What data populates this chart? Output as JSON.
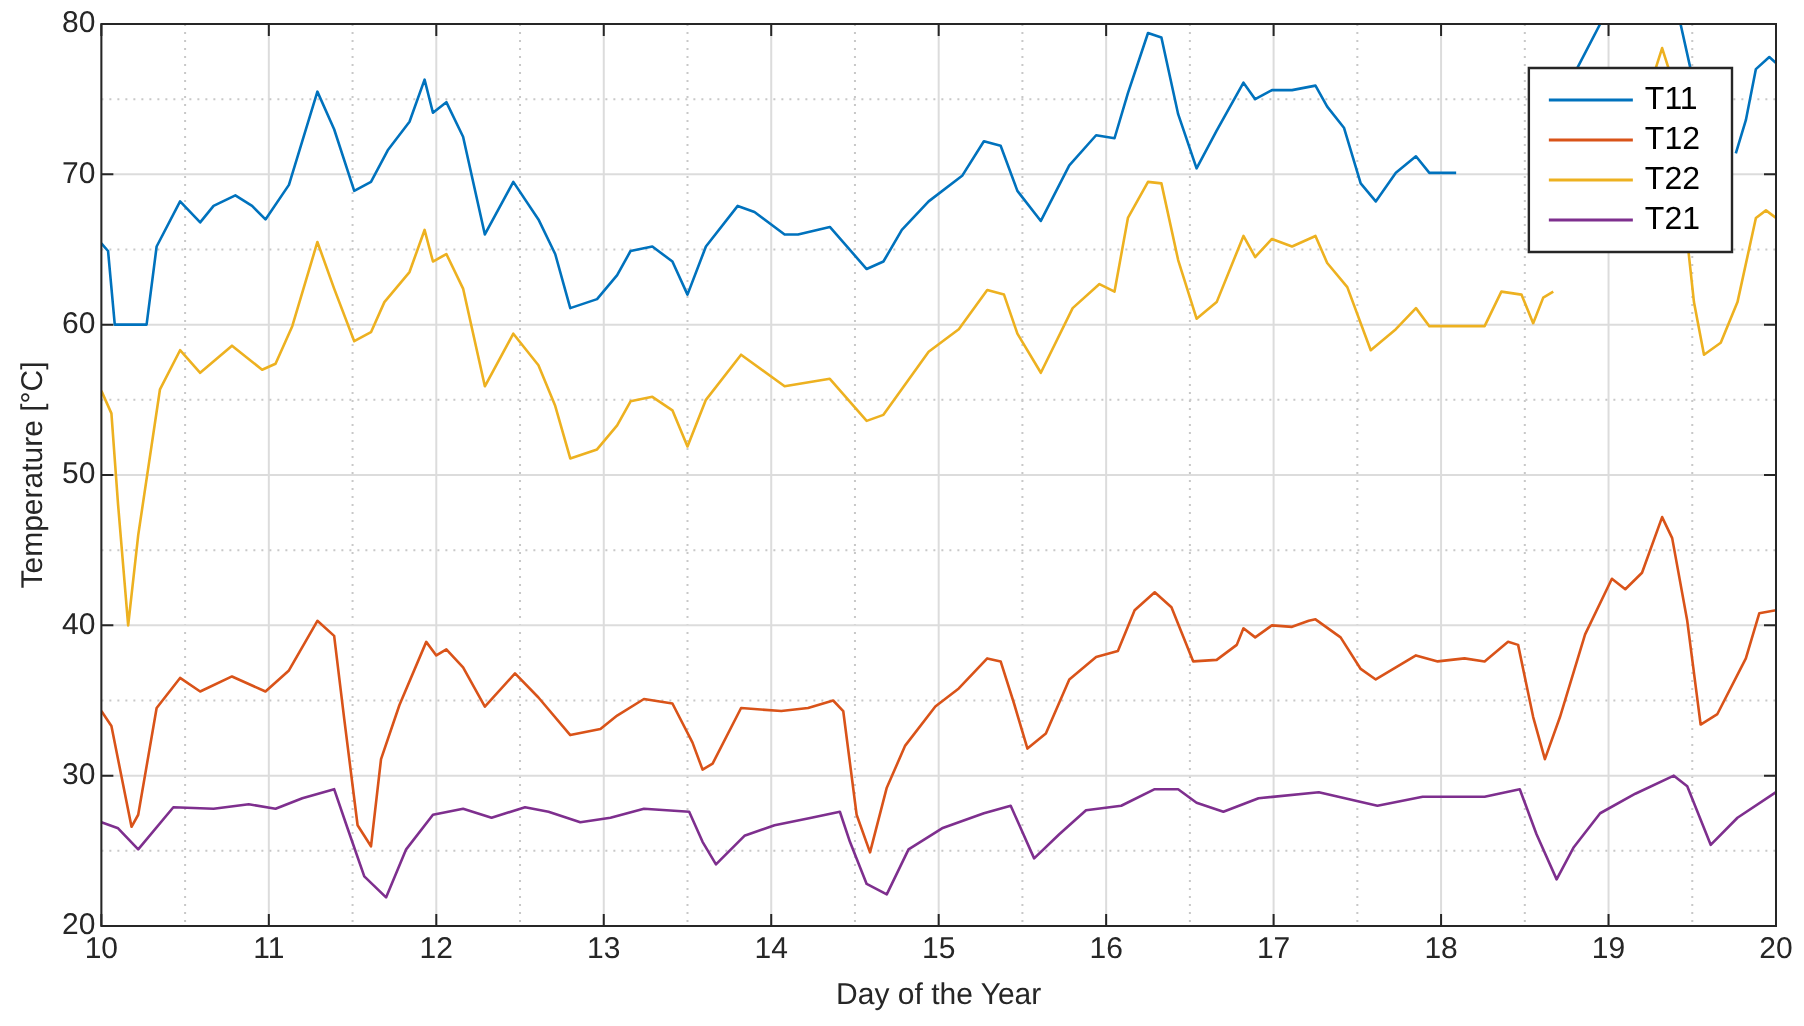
{
  "chart_data": {
    "type": "line",
    "xlabel": "Day of the Year",
    "ylabel": "Temperature [°C]",
    "xlim": [
      10,
      20
    ],
    "ylim": [
      20,
      80
    ],
    "xticks": [
      10,
      {
        "value": 10.5,
        "label": null
      },
      11,
      {
        "value": 11.5,
        "label": null
      },
      12,
      {
        "value": 12.5,
        "label": null
      },
      13,
      {
        "value": 13.5,
        "label": null
      },
      14,
      {
        "value": 14.5,
        "label": null
      },
      15,
      {
        "value": 15.5,
        "label": null
      },
      16,
      {
        "value": 16.5,
        "label": null
      },
      17,
      {
        "value": 17.5,
        "label": null
      },
      18,
      {
        "value": 18.5,
        "label": null
      },
      19,
      {
        "value": 19.5,
        "label": null
      },
      20
    ],
    "yticks": [
      20,
      {
        "value": 25,
        "label": null
      },
      30,
      {
        "value": 35,
        "label": null
      },
      40,
      {
        "value": 45,
        "label": null
      },
      50,
      {
        "value": 55,
        "label": null
      },
      60,
      {
        "value": 65,
        "label": null
      },
      70,
      {
        "value": 75,
        "label": null
      },
      80
    ],
    "grid": true,
    "legend": "top right",
    "line_style": "solid",
    "marker": "none",
    "series": [
      {
        "name": "T11",
        "color": "#0072bd",
        "x": [
          10,
          10.04,
          10.08,
          10.27,
          10.33,
          10.47,
          10.59,
          10.67,
          10.8,
          10.9,
          10.98,
          11.12,
          11.29,
          11.39,
          11.51,
          11.61,
          11.71,
          11.84,
          11.93,
          11.98,
          12.06,
          12.16,
          12.29,
          12.46,
          12.61,
          12.71,
          12.8,
          12.96,
          13.08,
          13.16,
          13.29,
          13.41,
          13.5,
          13.61,
          13.8,
          13.9,
          14.08,
          14.16,
          14.35,
          14.57,
          14.67,
          14.78,
          14.94,
          15.14,
          15.27,
          15.37,
          15.47,
          15.61,
          15.78,
          15.94,
          16.05,
          16.13,
          16.25,
          16.33,
          16.43,
          16.54,
          16.66,
          16.82,
          16.89,
          16.99,
          17.11,
          17.25,
          17.32,
          17.42,
          17.52,
          17.61,
          17.73,
          17.85,
          17.93,
          18.09,
          18.45,
          18.81,
          18.95,
          19.2,
          19.43,
          19.49,
          19.6,
          19.76,
          19.82,
          19.88,
          19.96,
          20
        ],
        "values": [
          65.4,
          64.9,
          60,
          60,
          65.2,
          68.2,
          66.8,
          67.9,
          68.6,
          67.9,
          67,
          69.3,
          75.5,
          73,
          68.9,
          69.5,
          71.6,
          73.5,
          76.3,
          74.1,
          74.8,
          72.5,
          66,
          69.5,
          67,
          64.7,
          61.1,
          61.7,
          63.3,
          64.9,
          65.2,
          64.2,
          62,
          65.2,
          67.9,
          67.5,
          66,
          66,
          66.5,
          63.7,
          64.2,
          66.3,
          68.2,
          69.9,
          72.2,
          71.9,
          68.9,
          66.9,
          70.6,
          72.6,
          72.4,
          75.4,
          79.4,
          79.1,
          74,
          70.4,
          72.9,
          76.1,
          75,
          75.6,
          75.6,
          75.9,
          74.5,
          73.1,
          69.4,
          68.2,
          70.1,
          71.2,
          70.1,
          70.1,
          null,
          77,
          80,
          null,
          80,
          77,
          null,
          71.4,
          73.6,
          77,
          77.8,
          77.4
        ]
      },
      {
        "name": "T12",
        "color": "#d95319",
        "x": [
          10,
          10.06,
          10.18,
          10.22,
          10.33,
          10.47,
          10.59,
          10.78,
          10.98,
          11.12,
          11.29,
          11.39,
          11.45,
          11.53,
          11.61,
          11.67,
          11.78,
          11.94,
          12,
          12.06,
          12.16,
          12.29,
          12.47,
          12.61,
          12.8,
          12.98,
          13.08,
          13.24,
          13.41,
          13.53,
          13.59,
          13.65,
          13.82,
          14.06,
          14.22,
          14.37,
          14.43,
          14.51,
          14.59,
          14.69,
          14.8,
          14.98,
          15.12,
          15.29,
          15.37,
          15.45,
          15.53,
          15.64,
          15.78,
          15.94,
          16.07,
          16.17,
          16.29,
          16.39,
          16.52,
          16.66,
          16.78,
          16.82,
          16.89,
          16.99,
          17.11,
          17.21,
          17.25,
          17.4,
          17.52,
          17.61,
          17.85,
          17.98,
          18.14,
          18.26,
          18.4,
          18.46,
          18.55,
          18.62,
          18.71,
          18.86,
          19.02,
          19.1,
          19.2,
          19.32,
          19.38,
          19.47,
          19.55,
          19.65,
          19.82,
          19.9,
          20
        ],
        "values": [
          34.3,
          33.3,
          26.6,
          27.4,
          34.5,
          36.5,
          35.6,
          36.6,
          35.6,
          37,
          40.3,
          39.3,
          33.8,
          26.7,
          25.3,
          31.1,
          34.7,
          38.9,
          38,
          38.4,
          37.2,
          34.6,
          36.8,
          35.2,
          32.7,
          33.1,
          34,
          35.1,
          34.8,
          32.2,
          30.4,
          30.8,
          34.5,
          34.3,
          34.5,
          35,
          34.3,
          27.4,
          24.9,
          29.2,
          32,
          34.6,
          35.8,
          37.8,
          37.6,
          34.8,
          31.8,
          32.8,
          36.4,
          37.9,
          38.3,
          41,
          42.2,
          41.2,
          37.6,
          37.7,
          38.7,
          39.8,
          39.2,
          40,
          39.9,
          40.3,
          40.4,
          39.2,
          37.1,
          36.4,
          38,
          37.6,
          37.8,
          37.6,
          38.9,
          38.7,
          33.9,
          31.1,
          33.9,
          39.4,
          43.1,
          42.4,
          43.5,
          47.2,
          45.8,
          40.3,
          33.4,
          34.1,
          37.8,
          40.8,
          41
        ]
      },
      {
        "name": "T22",
        "color": "#edb120",
        "x": [
          10,
          10.06,
          10.1,
          10.16,
          10.22,
          10.35,
          10.47,
          10.59,
          10.78,
          10.96,
          11.04,
          11.14,
          11.29,
          11.39,
          11.51,
          11.61,
          11.69,
          11.84,
          11.93,
          11.98,
          12.06,
          12.16,
          12.29,
          12.46,
          12.61,
          12.71,
          12.8,
          12.96,
          13.08,
          13.16,
          13.29,
          13.41,
          13.5,
          13.61,
          13.82,
          14.08,
          14.35,
          14.57,
          14.67,
          14.94,
          15.12,
          15.29,
          15.39,
          15.47,
          15.61,
          15.8,
          15.96,
          16.05,
          16.13,
          16.25,
          16.33,
          16.43,
          16.54,
          16.66,
          16.82,
          16.89,
          16.99,
          17.11,
          17.25,
          17.32,
          17.44,
          17.58,
          17.73,
          17.85,
          17.93,
          18.14,
          18.26,
          18.36,
          18.48,
          18.55,
          18.61,
          18.67,
          19,
          19.28,
          19.32,
          19.36,
          19.51,
          19.57,
          19.67,
          19.77,
          19.88,
          19.94,
          20
        ],
        "values": [
          55.6,
          54.1,
          48,
          40,
          46,
          55.7,
          58.3,
          56.8,
          58.6,
          57,
          57.4,
          59.9,
          65.5,
          62.4,
          58.9,
          59.5,
          61.5,
          63.5,
          66.3,
          64.2,
          64.7,
          62.4,
          55.9,
          59.4,
          57.3,
          54.6,
          51.1,
          51.7,
          53.3,
          54.9,
          55.2,
          54.3,
          51.9,
          55,
          58,
          55.9,
          56.4,
          53.6,
          54,
          58.2,
          59.7,
          62.3,
          62,
          59.4,
          56.8,
          61.1,
          62.7,
          62.2,
          67.1,
          69.5,
          69.4,
          64.3,
          60.4,
          61.5,
          65.9,
          64.5,
          65.7,
          65.2,
          65.9,
          64.1,
          62.5,
          58.3,
          59.7,
          61.1,
          59.9,
          59.9,
          59.9,
          62.2,
          62,
          60.1,
          61.8,
          62.2,
          null,
          77,
          78.4,
          77,
          61.5,
          58,
          58.8,
          61.5,
          67.1,
          67.6,
          67.1
        ]
      },
      {
        "name": "T21",
        "color": "#7e2f8e",
        "x": [
          10,
          10.1,
          10.22,
          10.43,
          10.67,
          10.88,
          11.04,
          11.2,
          11.39,
          11.47,
          11.57,
          11.7,
          11.82,
          11.98,
          12.16,
          12.33,
          12.53,
          12.67,
          12.86,
          13.04,
          13.24,
          13.51,
          13.59,
          13.67,
          13.84,
          14.02,
          14.24,
          14.41,
          14.47,
          14.57,
          14.69,
          14.82,
          15.02,
          15.27,
          15.43,
          15.57,
          15.72,
          15.88,
          16.09,
          16.29,
          16.43,
          16.54,
          16.7,
          16.91,
          17.27,
          17.62,
          17.89,
          18.26,
          18.47,
          18.57,
          18.69,
          18.79,
          18.95,
          19.16,
          19.39,
          19.47,
          19.61,
          19.77,
          20
        ],
        "values": [
          26.9,
          26.5,
          25.1,
          27.9,
          27.8,
          28.1,
          27.8,
          28.5,
          29.1,
          26.5,
          23.3,
          21.9,
          25.1,
          27.4,
          27.8,
          27.2,
          27.9,
          27.6,
          26.9,
          27.2,
          27.8,
          27.6,
          25.6,
          24.1,
          26,
          26.7,
          27.2,
          27.6,
          25.6,
          22.8,
          22.1,
          25.1,
          26.5,
          27.5,
          28,
          24.5,
          26.1,
          27.7,
          28,
          29.1,
          29.1,
          28.2,
          27.6,
          28.5,
          28.9,
          28,
          28.6,
          28.6,
          29.1,
          26.1,
          23.1,
          25.2,
          27.5,
          28.8,
          30,
          29.3,
          25.4,
          27.2,
          28.9
        ]
      }
    ]
  }
}
